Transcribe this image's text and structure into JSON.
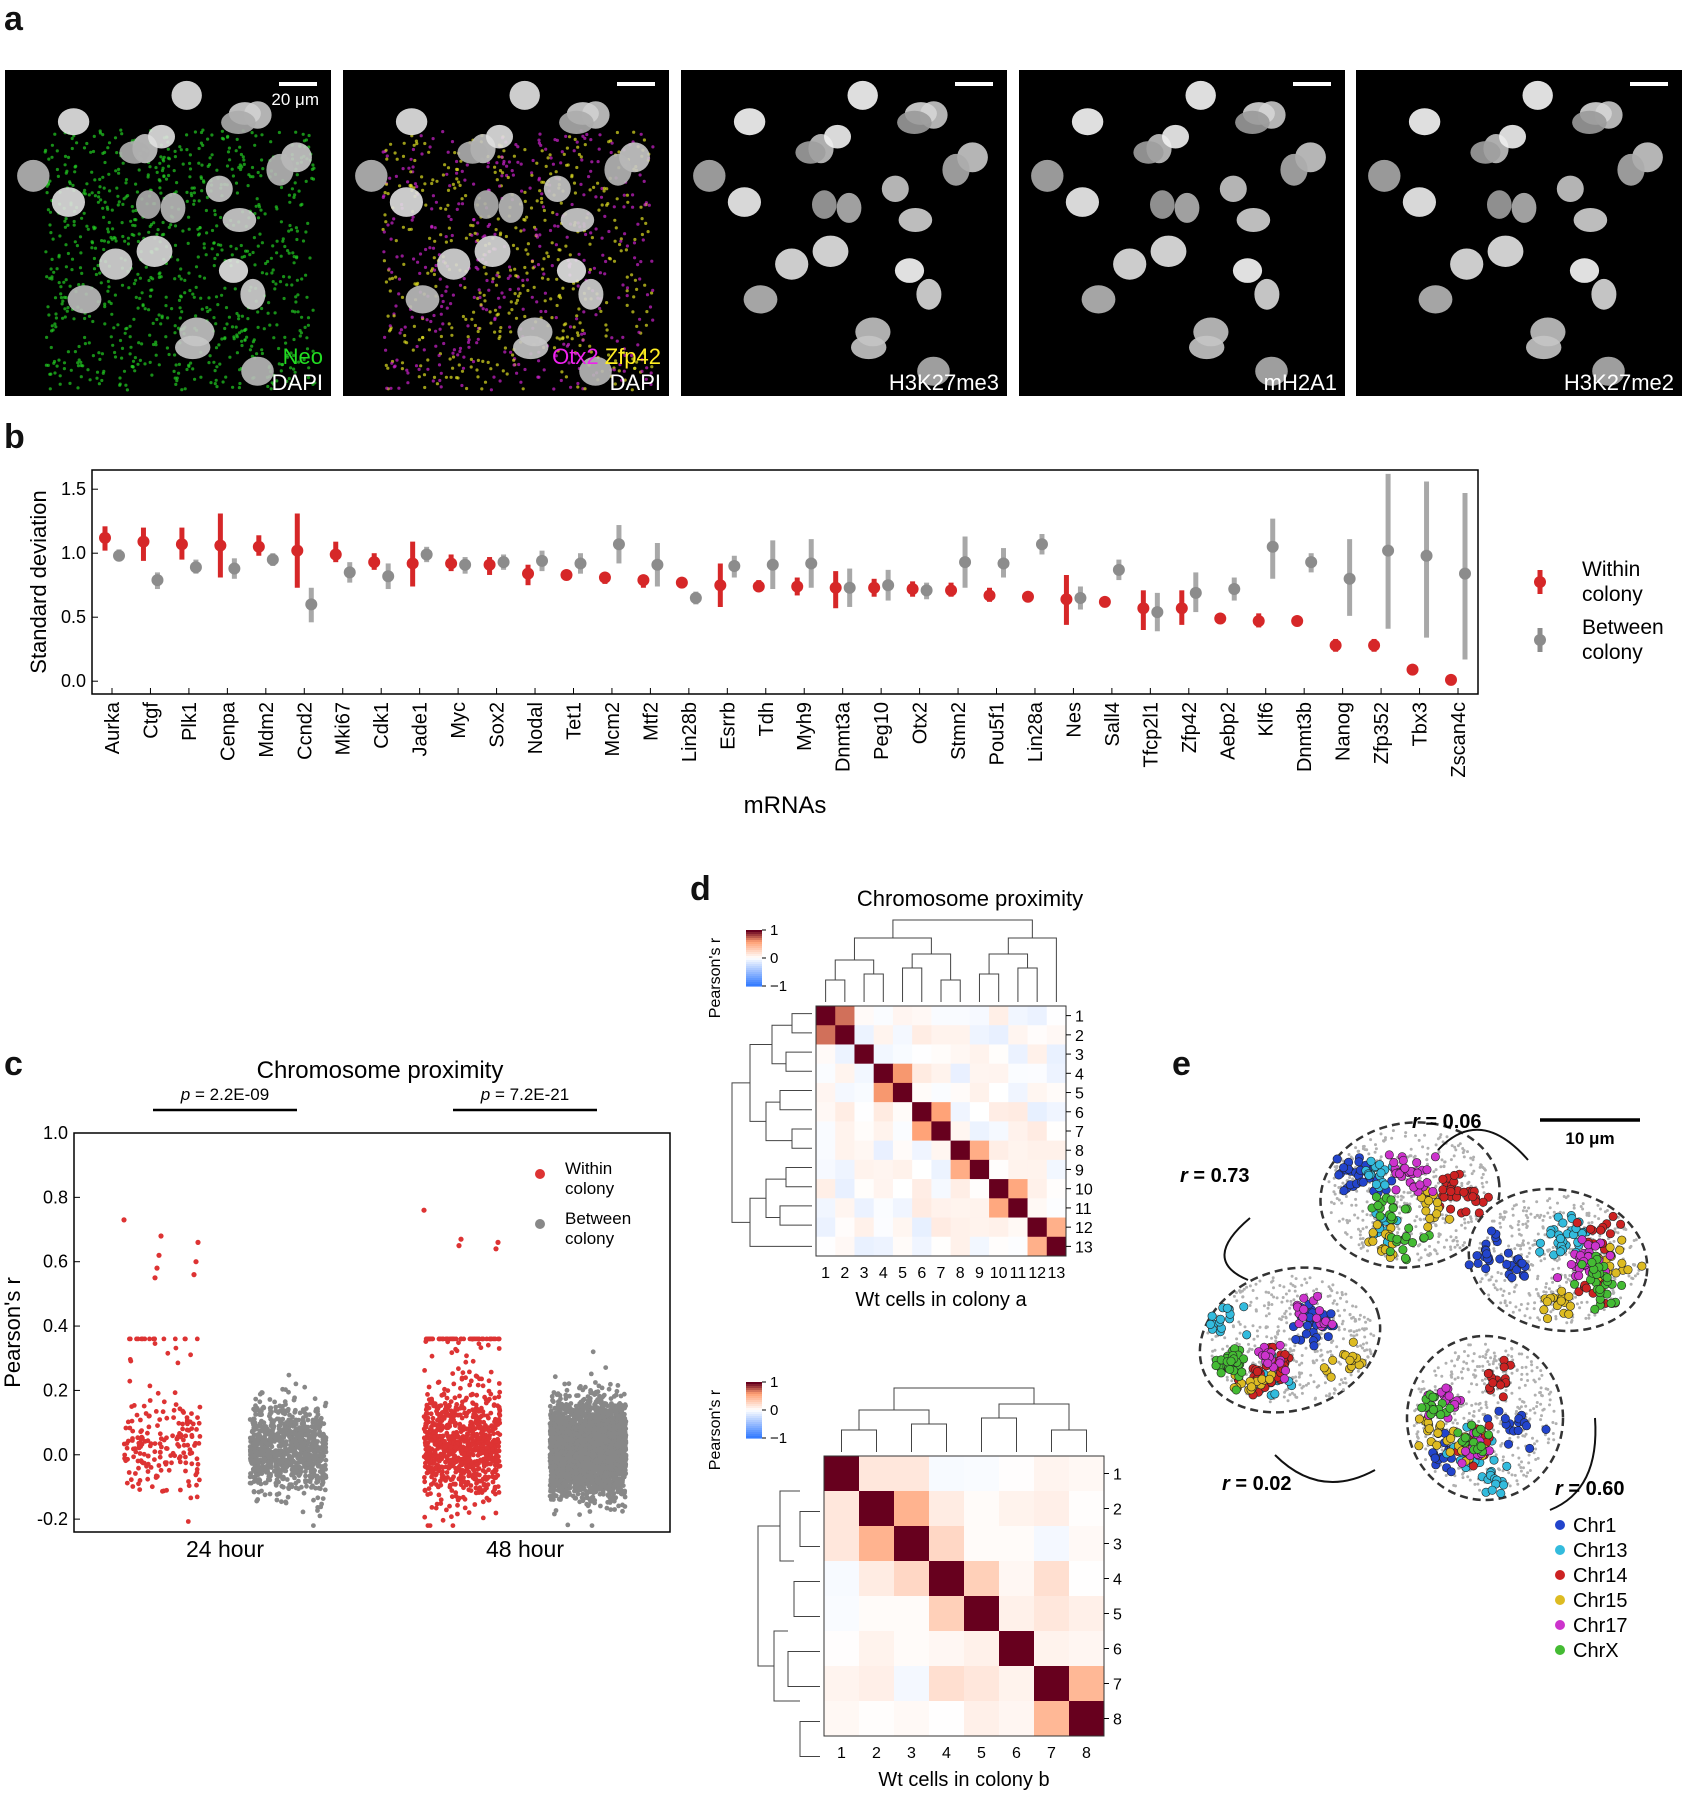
{
  "panels": {
    "a": "a",
    "b": "b",
    "c": "c",
    "d": "d",
    "e": "e"
  },
  "panel_a": {
    "scale_bar_label": "20 μm",
    "images": [
      {
        "lines": [
          [
            {
              "t": "Neo",
              "color": "#22dd22"
            }
          ],
          [
            {
              "t": "DAPI",
              "color": "#ffffff"
            }
          ]
        ]
      },
      {
        "lines": [
          [
            {
              "t": "Otx2",
              "color": "#ee22ee"
            },
            {
              "t": " "
            },
            {
              "t": "Zfp42",
              "color": "#ffee22"
            }
          ],
          [
            {
              "t": "DAPI",
              "color": "#ffffff"
            }
          ]
        ]
      },
      {
        "lines": [
          [
            {
              "t": "H3K27me3",
              "color": "#ffffff"
            }
          ]
        ]
      },
      {
        "lines": [
          [
            {
              "t": "mH2A1",
              "color": "#ffffff"
            }
          ]
        ]
      },
      {
        "lines": [
          [
            {
              "t": "H3K27me2",
              "color": "#ffffff"
            }
          ]
        ]
      }
    ]
  },
  "chart_data": [
    {
      "id": "b",
      "type": "scatter",
      "xlabel": "mRNAs",
      "ylabel": "Standard deviation",
      "ylim": [
        -0.1,
        1.65
      ],
      "yticks": [
        "0.0",
        "0.5",
        "1.0",
        "1.5"
      ],
      "categories": [
        "Aurka",
        "Ctgf",
        "Plk1",
        "Cenpa",
        "Mdm2",
        "Ccnd2",
        "Mki67",
        "Cdk1",
        "Jade1",
        "Myc",
        "Sox2",
        "Nodal",
        "Tet1",
        "Mcm2",
        "Mtf2",
        "Lin28b",
        "Esrrb",
        "Tdh",
        "Myh9",
        "Dnmt3a",
        "Peg10",
        "Otx2",
        "Stmn2",
        "Pou5f1",
        "Lin28a",
        "Nes",
        "Sall4",
        "Tfcp2l1",
        "Zfp42",
        "Aebp2",
        "Klf6",
        "Dnmt3b",
        "Nanog",
        "Zfp352",
        "Tbx3",
        "Zscan4c"
      ],
      "legend": [
        "Within colony",
        "Between colony"
      ],
      "series": [
        {
          "name": "Within colony",
          "color": "#d62728",
          "values": [
            1.12,
            1.09,
            1.07,
            1.06,
            1.05,
            1.02,
            0.99,
            0.93,
            0.92,
            0.92,
            0.91,
            0.84,
            0.83,
            0.81,
            0.79,
            0.77,
            0.75,
            0.74,
            0.74,
            0.73,
            0.73,
            0.72,
            0.71,
            0.67,
            0.66,
            0.64,
            0.62,
            0.57,
            0.57,
            0.49,
            0.47,
            0.47,
            0.28,
            0.28,
            0.09,
            0.01
          ],
          "err_low": [
            1.02,
            0.94,
            0.95,
            0.81,
            0.98,
            0.73,
            0.93,
            0.87,
            0.74,
            0.86,
            0.83,
            0.75,
            0.8,
            0.76,
            0.73,
            0.74,
            0.58,
            0.7,
            0.67,
            0.57,
            0.66,
            0.66,
            0.66,
            0.62,
            0.63,
            0.44,
            0.59,
            0.4,
            0.44,
            0.48,
            0.42,
            0.45,
            0.23,
            0.23,
            0.08,
            0.0
          ],
          "err_high": [
            1.21,
            1.2,
            1.2,
            1.31,
            1.14,
            1.31,
            1.09,
            1.0,
            1.09,
            0.99,
            0.97,
            0.91,
            0.86,
            0.85,
            0.83,
            0.79,
            0.92,
            0.79,
            0.81,
            0.86,
            0.8,
            0.78,
            0.77,
            0.73,
            0.7,
            0.83,
            0.65,
            0.71,
            0.71,
            0.5,
            0.53,
            0.49,
            0.33,
            0.33,
            0.1,
            0.02
          ]
        },
        {
          "name": "Between colony",
          "color": "#8c8c8c",
          "values": [
            0.98,
            0.79,
            0.89,
            0.88,
            0.95,
            0.6,
            0.85,
            0.82,
            0.99,
            0.91,
            0.93,
            0.94,
            0.92,
            1.07,
            0.91,
            0.65,
            0.9,
            0.91,
            0.92,
            0.73,
            0.75,
            0.71,
            0.93,
            0.92,
            1.07,
            0.65,
            0.87,
            0.54,
            0.69,
            0.72,
            1.05,
            0.93,
            0.8,
            1.02,
            0.98,
            0.84
          ],
          "err_low": [
            0.94,
            0.72,
            0.84,
            0.8,
            0.9,
            0.46,
            0.77,
            0.72,
            0.93,
            0.84,
            0.87,
            0.86,
            0.84,
            0.92,
            0.74,
            0.6,
            0.81,
            0.72,
            0.73,
            0.58,
            0.63,
            0.64,
            0.73,
            0.81,
            0.99,
            0.56,
            0.79,
            0.39,
            0.54,
            0.63,
            0.8,
            0.85,
            0.51,
            0.41,
            0.34,
            0.17
          ],
          "err_high": [
            1.03,
            0.85,
            0.95,
            0.96,
            1.0,
            0.73,
            0.93,
            0.92,
            1.05,
            0.97,
            0.99,
            1.02,
            1.0,
            1.22,
            1.08,
            0.7,
            0.98,
            1.1,
            1.11,
            0.88,
            0.87,
            0.77,
            1.13,
            1.04,
            1.15,
            0.74,
            0.95,
            0.69,
            0.85,
            0.81,
            1.27,
            1.0,
            1.11,
            1.62,
            1.56,
            1.47
          ]
        }
      ]
    },
    {
      "id": "c",
      "type": "scatter",
      "title": "Chromosome proximity",
      "ylabel": "Pearson's r",
      "ylim": [
        -0.24,
        1.0
      ],
      "yticks": [
        "-0.2",
        "0.0",
        "0.2",
        "0.4",
        "0.6",
        "0.8",
        "1.0"
      ],
      "categories": [
        "24 hour",
        "48 hour"
      ],
      "pvalues": [
        "p = 2.2E-09",
        "p = 7.2E-21"
      ],
      "legend": [
        "Within colony",
        "Between colony"
      ],
      "series": [
        {
          "name": "Within colony",
          "color": "#dd3333"
        },
        {
          "name": "Between colony",
          "color": "#888888"
        }
      ],
      "highlighted_points": [
        {
          "group": "24 hour",
          "values": [
            0.73,
            0.68,
            0.66,
            0.62,
            0.6,
            0.58,
            0.56,
            0.55
          ]
        },
        {
          "group": "48 hour",
          "values": [
            0.76,
            0.67,
            0.66,
            0.65,
            0.64
          ]
        }
      ]
    },
    {
      "id": "d-top",
      "type": "heatmap",
      "title": "Chromosome proximity",
      "xlabel": "Wt cells in colony a",
      "colorbar_label": "Pearson's r",
      "colorbar_ticks": [
        "1",
        "0",
        "−1"
      ],
      "labels": [
        "1",
        "2",
        "3",
        "4",
        "5",
        "6",
        "7",
        "8",
        "9",
        "10",
        "11",
        "12",
        "13"
      ],
      "pairs": [
        [
          1,
          2,
          0.72
        ],
        [
          4,
          5,
          0.62
        ],
        [
          6,
          7,
          0.58
        ],
        [
          8,
          9,
          0.52
        ],
        [
          10,
          11,
          0.55
        ],
        [
          12,
          13,
          0.5
        ]
      ],
      "background_range": [
        -0.12,
        0.14
      ]
    },
    {
      "id": "d-bottom",
      "type": "heatmap",
      "xlabel": "Wt cells in colony b",
      "colorbar_label": "Pearson's r",
      "colorbar_ticks": [
        "1",
        "0",
        "−1"
      ],
      "labels": [
        "1",
        "2",
        "3",
        "4",
        "5",
        "6",
        "7",
        "8"
      ],
      "pairs": [
        [
          2,
          3,
          0.48
        ],
        [
          4,
          5,
          0.3
        ],
        [
          7,
          8,
          0.45
        ],
        [
          3,
          4,
          0.25
        ],
        [
          1,
          2,
          0.15
        ],
        [
          1,
          3,
          0.15
        ],
        [
          2,
          4,
          0.12
        ],
        [
          4,
          7,
          0.2
        ],
        [
          5,
          7,
          0.15
        ]
      ],
      "background_range": [
        -0.08,
        0.12
      ]
    }
  ],
  "panel_e": {
    "scale_bar_label": "10 μm",
    "correlations": [
      "r = 0.73",
      "r = 0.06",
      "r = 0.02",
      "r = 0.60"
    ],
    "legend": [
      {
        "label": "Chr1",
        "color": "#2244cc"
      },
      {
        "label": "Chr13",
        "color": "#33bbdd"
      },
      {
        "label": "Chr14",
        "color": "#cc2222"
      },
      {
        "label": "Chr15",
        "color": "#ddbb22"
      },
      {
        "label": "Chr17",
        "color": "#cc33cc"
      },
      {
        "label": "ChrX",
        "color": "#44bb33"
      }
    ]
  }
}
